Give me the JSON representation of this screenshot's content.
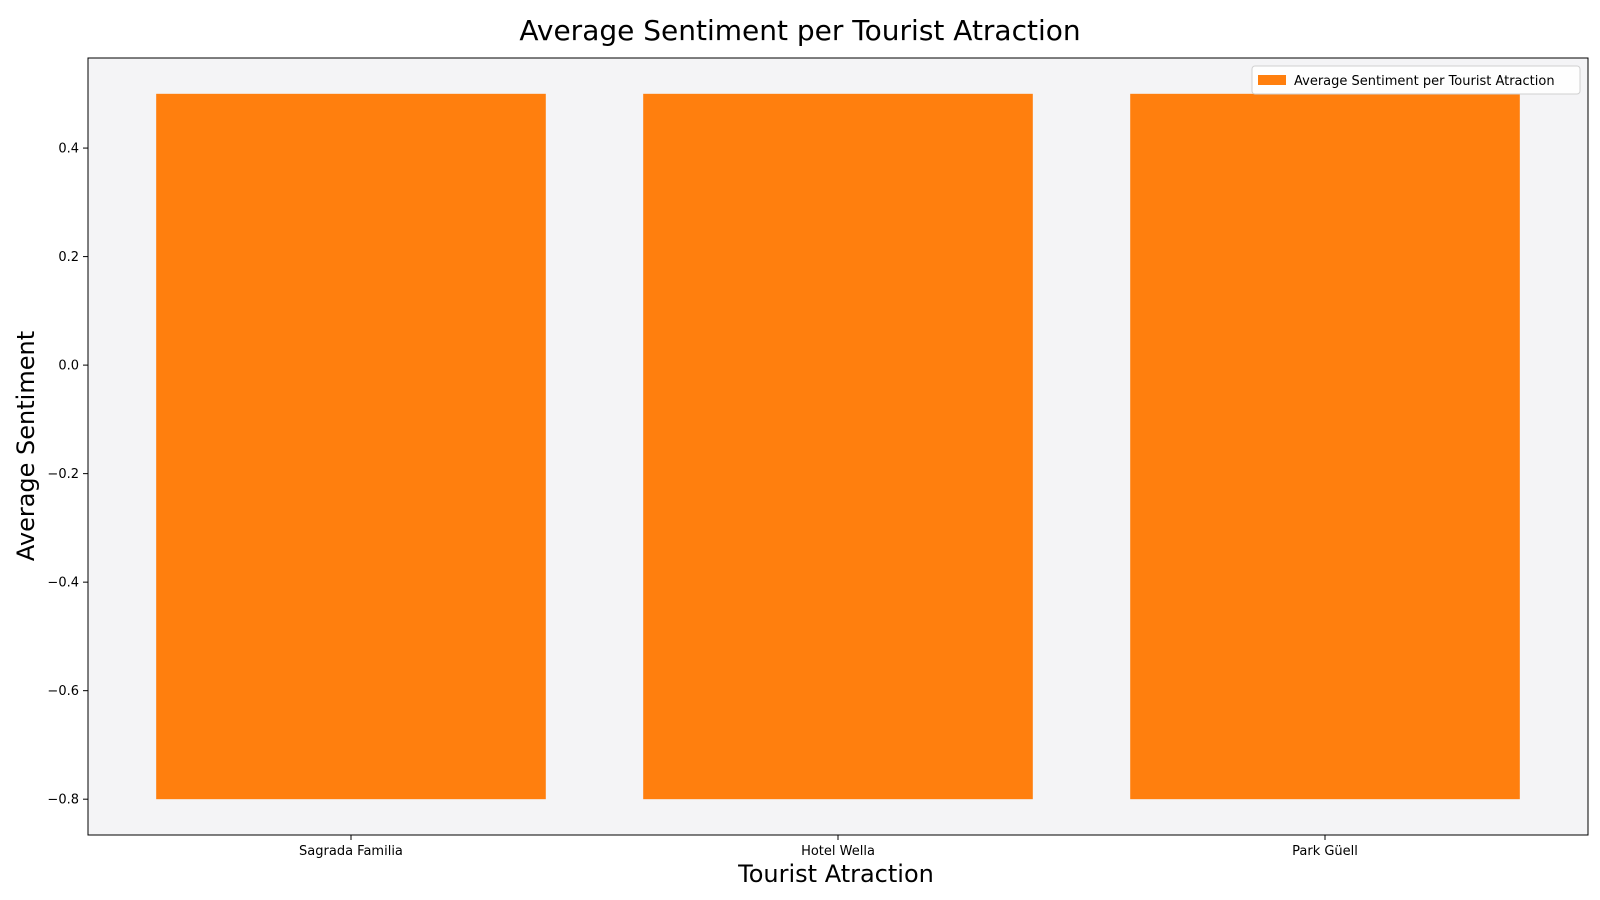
{
  "chart_data": {
    "type": "bar",
    "title": "Average Sentiment per Tourist Atraction",
    "xlabel": "Tourist Atraction",
    "ylabel": "Average Sentiment",
    "categories": [
      "Sagrada Familia",
      "Hotel Wella",
      "Park Güell"
    ],
    "series": [
      {
        "name": "Average Sentiment per Tourist Atraction",
        "bars": [
          {
            "bottom": -0.8,
            "top": 0.5
          },
          {
            "bottom": -0.8,
            "top": 0.5
          },
          {
            "bottom": -0.8,
            "top": 0.5
          }
        ]
      }
    ],
    "ylim": [
      -0.866,
      0.566
    ],
    "yticks": [
      -0.8,
      -0.6,
      -0.4,
      -0.2,
      0.0,
      0.2,
      0.4
    ],
    "ytick_labels": [
      "−0.8",
      "−0.6",
      "−0.4",
      "−0.2",
      "0.0",
      "0.2",
      "0.4"
    ],
    "grid": false,
    "legend_position": "top-right",
    "colors": {
      "bar": "#ff7f0e",
      "plot_background": "#f4f4f6",
      "axes": "#000000",
      "legend_border": "#d0d0d0"
    }
  }
}
